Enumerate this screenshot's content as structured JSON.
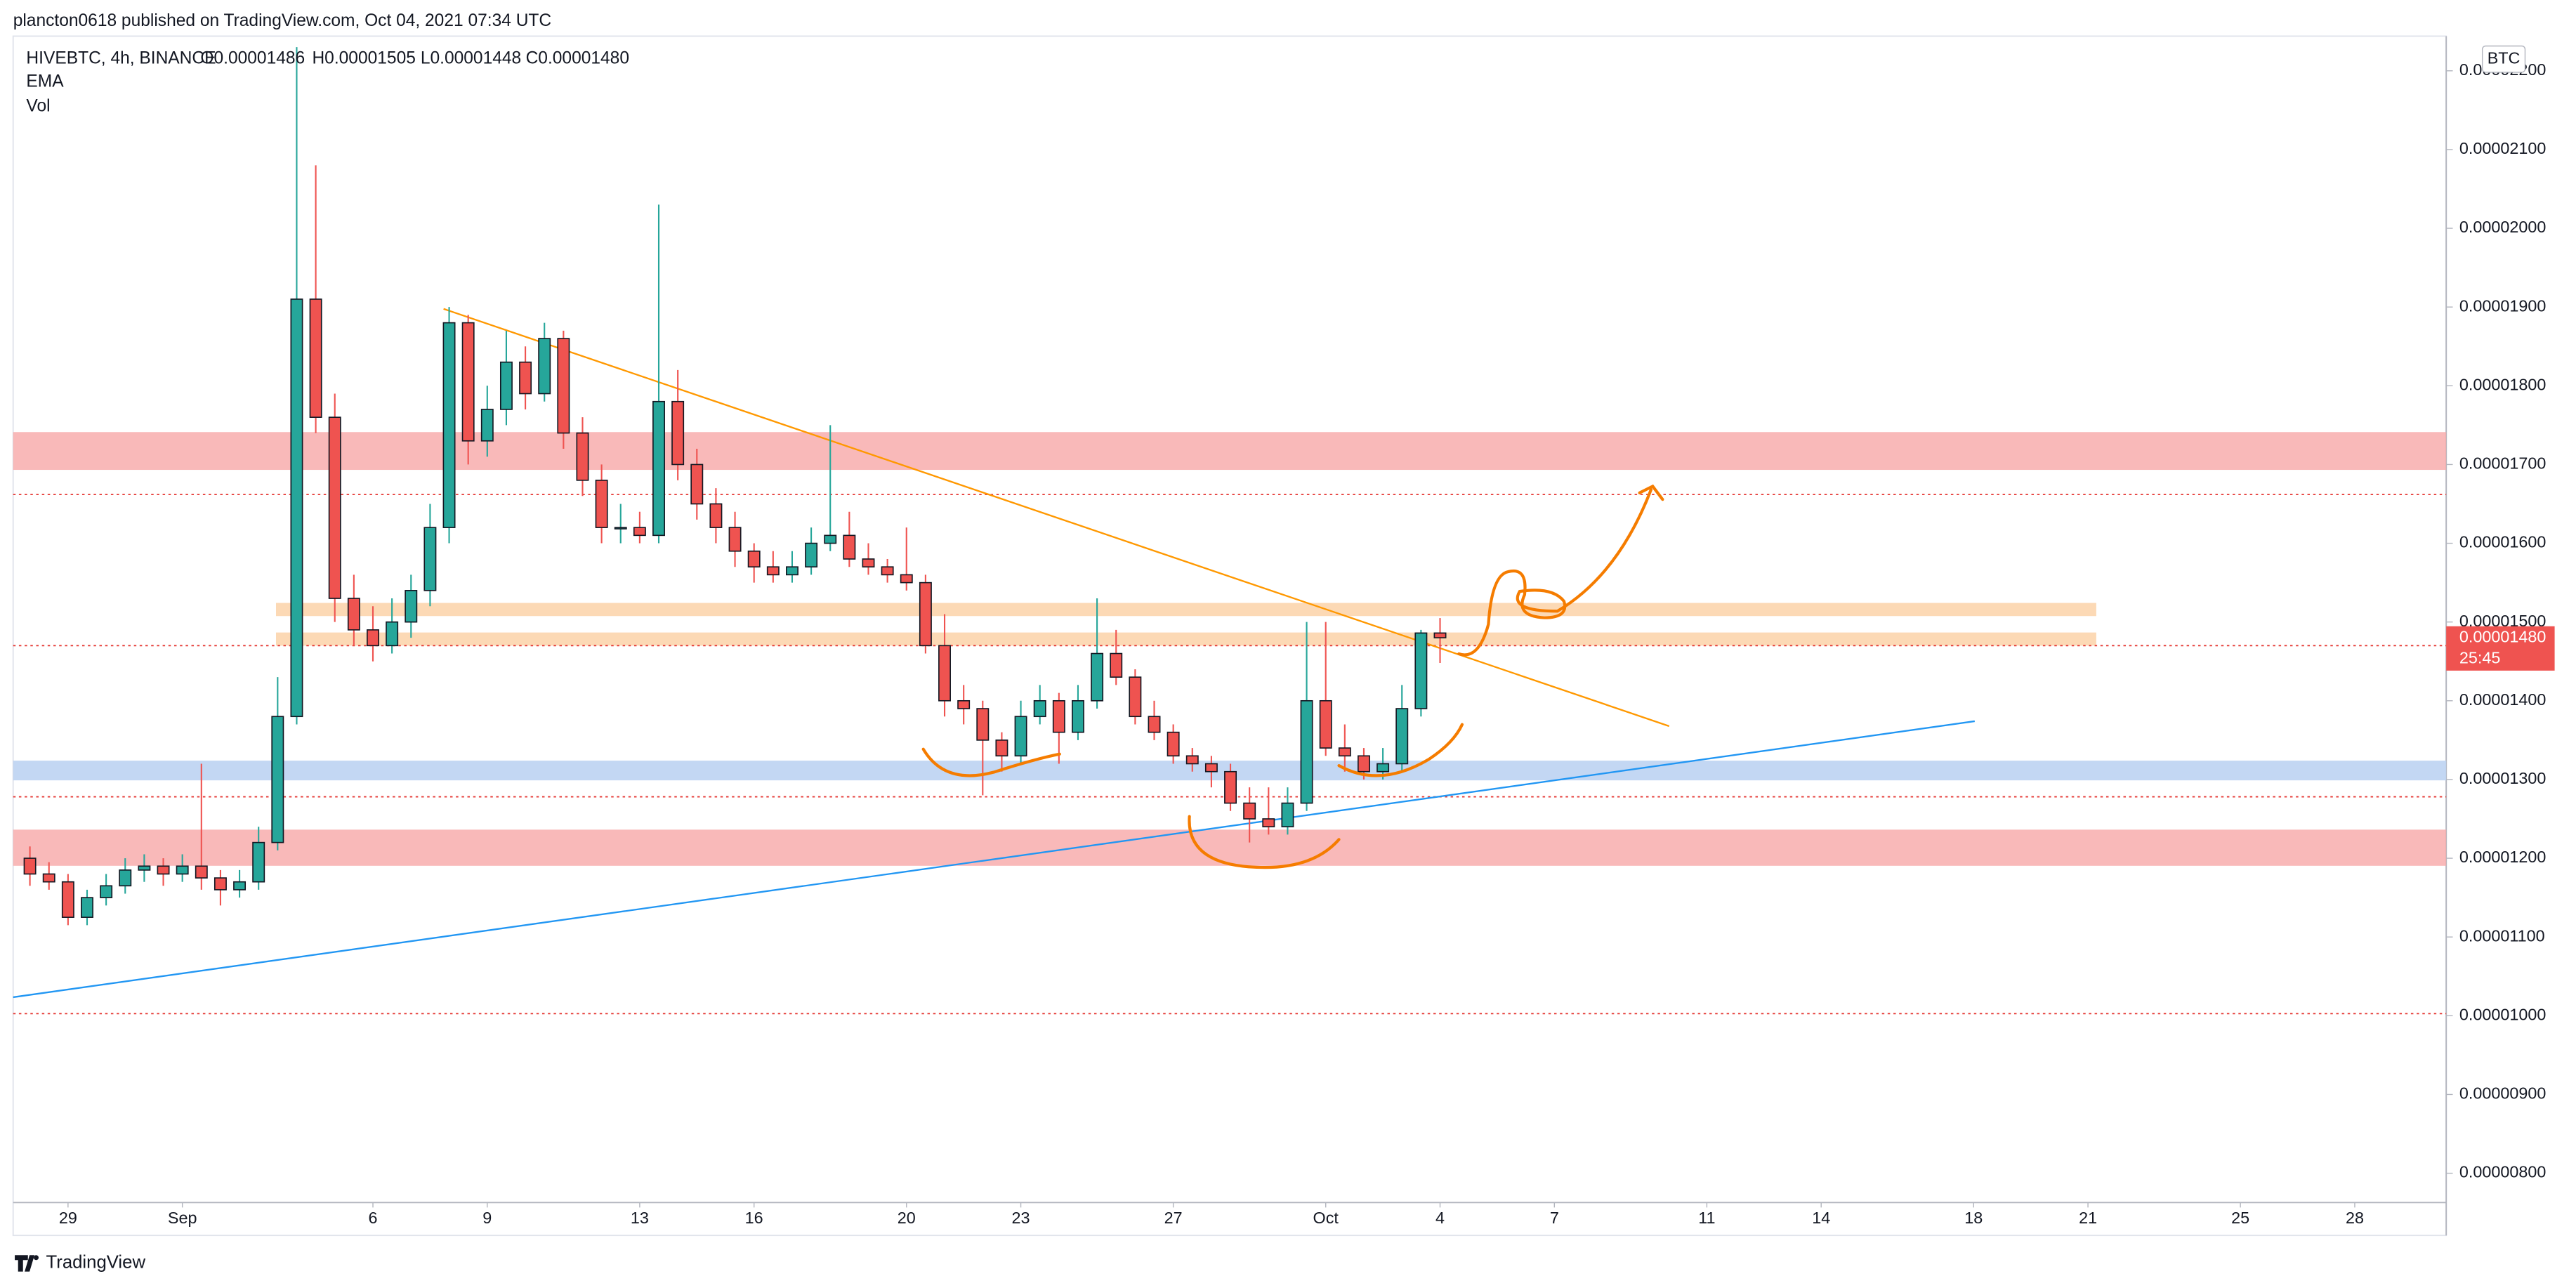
{
  "header": {
    "publisher": "plancton0618 published on TradingView.com, Oct 04, 2021 07:34 UTC"
  },
  "chart_data": {
    "type": "candlestick",
    "symbol": "HIVEBTC, 4h, BINANCE",
    "ohlc_legend": [
      "O0.00001486",
      "H0.00001505",
      "L0.00001448",
      "C0.00001480"
    ],
    "indicators": [
      "EMA",
      "Vol"
    ],
    "currency": "BTC",
    "x": [
      -4,
      -3.5,
      -3,
      -2.5,
      -2,
      -1.5,
      -1,
      -0.5,
      0,
      0.5,
      1,
      1.5,
      2,
      2.5,
      3,
      3.5,
      4,
      4.5,
      5,
      5.5,
      6,
      6.5,
      7,
      7.5,
      8,
      8.5,
      9,
      9.5,
      10,
      10.5,
      11,
      11.5,
      12,
      12.5,
      13,
      13.5,
      14,
      14.5,
      15,
      15.5,
      16,
      16.5,
      17,
      17.5,
      18,
      18.5,
      19,
      19.5,
      20,
      20.5,
      21,
      21.5,
      22,
      22.5,
      23,
      23.5,
      24,
      24.5,
      25,
      25.5,
      26,
      26.5,
      27,
      27.5,
      28,
      28.5,
      29,
      29.5,
      30,
      30.5,
      31,
      31.5,
      32,
      32.5,
      33
    ],
    "open": [
      1.2e-05,
      1.18e-05,
      1.17e-05,
      1.125e-05,
      1.15e-05,
      1.165e-05,
      1.185e-05,
      1.19e-05,
      1.18e-05,
      1.19e-05,
      1.175e-05,
      1.16e-05,
      1.17e-05,
      1.22e-05,
      1.38e-05,
      1.91e-05,
      1.76e-05,
      1.53e-05,
      1.49e-05,
      1.47e-05,
      1.5e-05,
      1.54e-05,
      1.62e-05,
      1.88e-05,
      1.73e-05,
      1.77e-05,
      1.83e-05,
      1.79e-05,
      1.86e-05,
      1.74e-05,
      1.68e-05,
      1.62e-05,
      1.62e-05,
      1.61e-05,
      1.78e-05,
      1.7e-05,
      1.65e-05,
      1.62e-05,
      1.59e-05,
      1.57e-05,
      1.56e-05,
      1.57e-05,
      1.6e-05,
      1.61e-05,
      1.58e-05,
      1.57e-05,
      1.56e-05,
      1.55e-05,
      1.47e-05,
      1.4e-05,
      1.39e-05,
      1.35e-05,
      1.33e-05,
      1.38e-05,
      1.4e-05,
      1.36e-05,
      1.4e-05,
      1.46e-05,
      1.43e-05,
      1.38e-05,
      1.36e-05,
      1.33e-05,
      1.32e-05,
      1.31e-05,
      1.27e-05,
      1.25e-05,
      1.24e-05,
      1.27e-05,
      1.4e-05,
      1.34e-05,
      1.33e-05,
      1.31e-05,
      1.32e-05,
      1.39e-05,
      1.486e-05
    ],
    "high": [
      1.215e-05,
      1.195e-05,
      1.18e-05,
      1.16e-05,
      1.18e-05,
      1.2e-05,
      1.205e-05,
      1.2e-05,
      1.205e-05,
      1.32e-05,
      1.185e-05,
      1.185e-05,
      1.24e-05,
      1.43e-05,
      2.23e-05,
      2.08e-05,
      1.79e-05,
      1.56e-05,
      1.52e-05,
      1.53e-05,
      1.56e-05,
      1.65e-05,
      1.9e-05,
      1.89e-05,
      1.8e-05,
      1.87e-05,
      1.85e-05,
      1.88e-05,
      1.87e-05,
      1.76e-05,
      1.7e-05,
      1.65e-05,
      1.64e-05,
      2.03e-05,
      1.82e-05,
      1.72e-05,
      1.67e-05,
      1.64e-05,
      1.6e-05,
      1.59e-05,
      1.59e-05,
      1.62e-05,
      1.75e-05,
      1.64e-05,
      1.6e-05,
      1.58e-05,
      1.62e-05,
      1.56e-05,
      1.51e-05,
      1.42e-05,
      1.4e-05,
      1.36e-05,
      1.4e-05,
      1.42e-05,
      1.41e-05,
      1.42e-05,
      1.53e-05,
      1.49e-05,
      1.44e-05,
      1.4e-05,
      1.37e-05,
      1.34e-05,
      1.33e-05,
      1.32e-05,
      1.29e-05,
      1.29e-05,
      1.29e-05,
      1.5e-05,
      1.5e-05,
      1.37e-05,
      1.34e-05,
      1.34e-05,
      1.42e-05,
      1.49e-05,
      1.505e-05
    ],
    "low": [
      1.165e-05,
      1.16e-05,
      1.115e-05,
      1.115e-05,
      1.14e-05,
      1.155e-05,
      1.17e-05,
      1.165e-05,
      1.17e-05,
      1.16e-05,
      1.14e-05,
      1.15e-05,
      1.16e-05,
      1.21e-05,
      1.37e-05,
      1.74e-05,
      1.5e-05,
      1.47e-05,
      1.45e-05,
      1.46e-05,
      1.48e-05,
      1.52e-05,
      1.6e-05,
      1.7e-05,
      1.71e-05,
      1.75e-05,
      1.77e-05,
      1.78e-05,
      1.72e-05,
      1.66e-05,
      1.6e-05,
      1.6e-05,
      1.6e-05,
      1.6e-05,
      1.68e-05,
      1.63e-05,
      1.6e-05,
      1.57e-05,
      1.55e-05,
      1.55e-05,
      1.55e-05,
      1.56e-05,
      1.59e-05,
      1.57e-05,
      1.56e-05,
      1.55e-05,
      1.54e-05,
      1.46e-05,
      1.38e-05,
      1.37e-05,
      1.28e-05,
      1.31e-05,
      1.32e-05,
      1.37e-05,
      1.32e-05,
      1.35e-05,
      1.39e-05,
      1.42e-05,
      1.37e-05,
      1.35e-05,
      1.32e-05,
      1.31e-05,
      1.29e-05,
      1.26e-05,
      1.22e-05,
      1.23e-05,
      1.23e-05,
      1.26e-05,
      1.33e-05,
      1.31e-05,
      1.3e-05,
      1.3e-05,
      1.31e-05,
      1.38e-05,
      1.448e-05
    ],
    "close": [
      1.18e-05,
      1.17e-05,
      1.125e-05,
      1.15e-05,
      1.165e-05,
      1.185e-05,
      1.19e-05,
      1.18e-05,
      1.19e-05,
      1.175e-05,
      1.16e-05,
      1.17e-05,
      1.22e-05,
      1.38e-05,
      1.91e-05,
      1.76e-05,
      1.53e-05,
      1.49e-05,
      1.47e-05,
      1.5e-05,
      1.54e-05,
      1.62e-05,
      1.88e-05,
      1.73e-05,
      1.77e-05,
      1.83e-05,
      1.79e-05,
      1.86e-05,
      1.74e-05,
      1.68e-05,
      1.62e-05,
      1.62e-05,
      1.61e-05,
      1.78e-05,
      1.7e-05,
      1.65e-05,
      1.62e-05,
      1.59e-05,
      1.57e-05,
      1.56e-05,
      1.57e-05,
      1.6e-05,
      1.61e-05,
      1.58e-05,
      1.57e-05,
      1.56e-05,
      1.55e-05,
      1.47e-05,
      1.4e-05,
      1.39e-05,
      1.35e-05,
      1.33e-05,
      1.38e-05,
      1.4e-05,
      1.36e-05,
      1.4e-05,
      1.46e-05,
      1.43e-05,
      1.38e-05,
      1.36e-05,
      1.33e-05,
      1.32e-05,
      1.31e-05,
      1.27e-05,
      1.25e-05,
      1.24e-05,
      1.27e-05,
      1.4e-05,
      1.34e-05,
      1.33e-05,
      1.31e-05,
      1.32e-05,
      1.39e-05,
      1.486e-05,
      1.48e-05
    ],
    "up_color": "#26a69a",
    "down_color": "#ef5350",
    "xlim": [
      -4.44,
      59.4
    ],
    "xticks": [
      {
        "value": -3,
        "label": "29"
      },
      {
        "value": 0,
        "label": "Sep"
      },
      {
        "value": 5,
        "label": "6"
      },
      {
        "value": 8,
        "label": "9"
      },
      {
        "value": 12,
        "label": "13"
      },
      {
        "value": 15,
        "label": "16"
      },
      {
        "value": 19,
        "label": "20"
      },
      {
        "value": 22,
        "label": "23"
      },
      {
        "value": 26,
        "label": "27"
      },
      {
        "value": 30,
        "label": "Oct"
      },
      {
        "value": 33,
        "label": "4"
      },
      {
        "value": 36,
        "label": "7"
      },
      {
        "value": 40,
        "label": "11"
      },
      {
        "value": 43,
        "label": "14"
      },
      {
        "value": 47,
        "label": "18"
      },
      {
        "value": 50,
        "label": "21"
      },
      {
        "value": 54,
        "label": "25"
      },
      {
        "value": 57,
        "label": "28"
      }
    ],
    "ylim": [
      7.21e-06,
      2.244e-05
    ],
    "yticks": [
      {
        "value": 2.2e-05,
        "label": "0.00002200"
      },
      {
        "value": 2.1e-05,
        "label": "0.00002100"
      },
      {
        "value": 2e-05,
        "label": "0.00002000"
      },
      {
        "value": 1.9e-05,
        "label": "0.00001900"
      },
      {
        "value": 1.8e-05,
        "label": "0.00001800"
      },
      {
        "value": 1.7e-05,
        "label": "0.00001700"
      },
      {
        "value": 1.6e-05,
        "label": "0.00001600"
      },
      {
        "value": 1.5e-05,
        "label": "0.00001500"
      },
      {
        "value": 1.4e-05,
        "label": "0.00001400"
      },
      {
        "value": 1.3e-05,
        "label": "0.00001300"
      },
      {
        "value": 1.2e-05,
        "label": "0.00001200"
      },
      {
        "value": 1.1e-05,
        "label": "0.00001100"
      },
      {
        "value": 1e-05,
        "label": "0.00001000"
      },
      {
        "value": 9e-06,
        "label": "0.00000900"
      },
      {
        "value": 8e-06,
        "label": "0.00000800"
      }
    ],
    "grid": false,
    "last_price": {
      "value": 1.48e-05,
      "label": "0.00001480"
    },
    "countdown": "25:45"
  },
  "footer": {
    "brand": "TradingView"
  }
}
